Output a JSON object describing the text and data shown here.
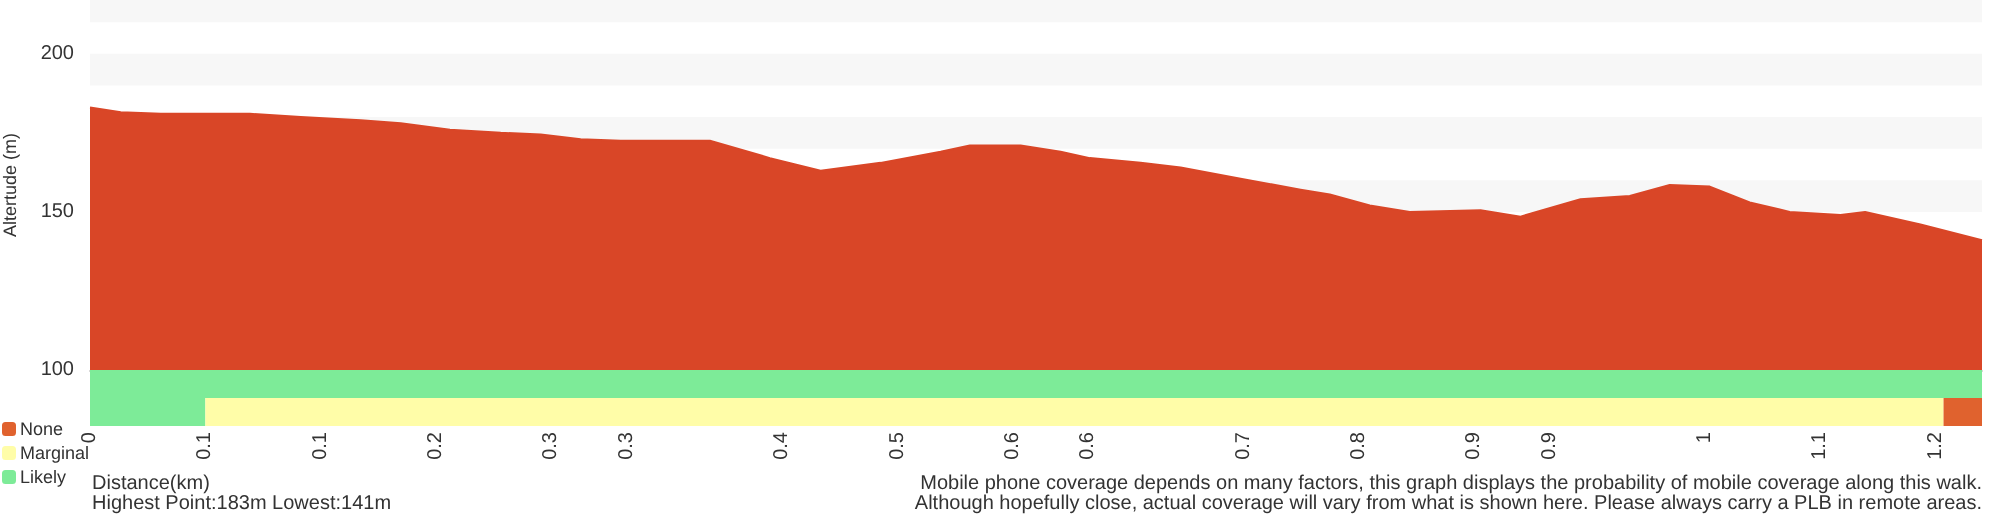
{
  "chart_data": [
    {
      "type": "area",
      "ylabel": "Altertude (m)",
      "x": [
        0,
        0.02,
        0.046,
        0.104,
        0.137,
        0.176,
        0.202,
        0.234,
        0.267,
        0.293,
        0.319,
        0.345,
        0.403,
        0.442,
        0.475,
        0.514,
        0.553,
        0.572,
        0.605,
        0.631,
        0.65,
        0.683,
        0.709,
        0.748,
        0.787,
        0.806,
        0.832,
        0.858,
        0.904,
        0.93,
        0.969,
        1.001,
        1.027,
        1.053,
        1.079,
        1.105,
        1.138,
        1.154,
        1.19,
        1.23
      ],
      "series": [
        {
          "color": "#d94627",
          "values": [
            183,
            181.5,
            181,
            181,
            180,
            179,
            178,
            176,
            175,
            174.5,
            173,
            172.5,
            172.5,
            167,
            163,
            165.5,
            169,
            171,
            171,
            169,
            167,
            165.5,
            164,
            160.5,
            157,
            155.5,
            152,
            150,
            150.5,
            148.5,
            154,
            155,
            158.5,
            158,
            153,
            150,
            149,
            150,
            146,
            141
          ]
        }
      ],
      "xlim": [
        0,
        1.23
      ],
      "ylim": [
        100,
        217
      ],
      "yticks": [
        100,
        150,
        200
      ],
      "bands": [
        {
          "axis": "y",
          "from": 150,
          "to": 160,
          "color": "#f7f7f7"
        },
        {
          "axis": "y",
          "from": 170,
          "to": 180,
          "color": "#f7f7f7"
        },
        {
          "axis": "y",
          "from": 190,
          "to": 200,
          "color": "#f7f7f7"
        },
        {
          "axis": "y",
          "from": 210,
          "to": 217,
          "color": "#f7f7f7"
        }
      ],
      "tick_labels": "y"
    },
    {
      "type": "bar",
      "orientation": "horizontal",
      "stacked": true,
      "categories": [
        null,
        null
      ],
      "xlabel": "Distance(km)",
      "series": [
        {
          "name": "Likely",
          "color": "#7deb98",
          "values": [
            1.23,
            0.075
          ]
        },
        {
          "name": "Marginal",
          "color": "#fffda8",
          "values": [
            null,
            1.13
          ]
        },
        {
          "name": "None",
          "color": "#e0622e",
          "values": [
            null,
            0.025
          ]
        }
      ],
      "xlim": [
        0,
        1.23
      ],
      "xticks": [
        0,
        {
          "value": 0.075,
          "label": "0.1"
        },
        {
          "value": 0.15,
          "label": "0.1"
        },
        {
          "value": 0.225,
          "label": "0.2"
        },
        {
          "value": 0.3,
          "label": "0.3"
        },
        {
          "value": 0.349,
          "label": "0.3"
        },
        {
          "value": 0.45,
          "label": "0.4"
        },
        {
          "value": 0.525,
          "label": "0.5"
        },
        {
          "value": 0.6,
          "label": "0.6"
        },
        {
          "value": 0.649,
          "label": "0.6"
        },
        {
          "value": 0.75,
          "label": "0.7"
        },
        {
          "value": 0.825,
          "label": "0.8"
        },
        {
          "value": 0.9,
          "label": "0.9"
        },
        {
          "value": 0.949,
          "label": "0.9"
        },
        {
          "value": 1.05,
          "label": "1"
        },
        {
          "value": 1.125,
          "label": "1.1"
        },
        {
          "value": 1.2,
          "label": "1.2"
        }
      ],
      "legend": "bottom left",
      "annotations": [
        "Highest Point:183m Lowest:141m",
        "Mobile phone coverage depends on many factors, this graph displays the probability of mobile coverage along this walk.",
        "Although hopefully close, actual coverage will vary from what is shown here. Please always carry a PLB in remote areas."
      ]
    }
  ]
}
